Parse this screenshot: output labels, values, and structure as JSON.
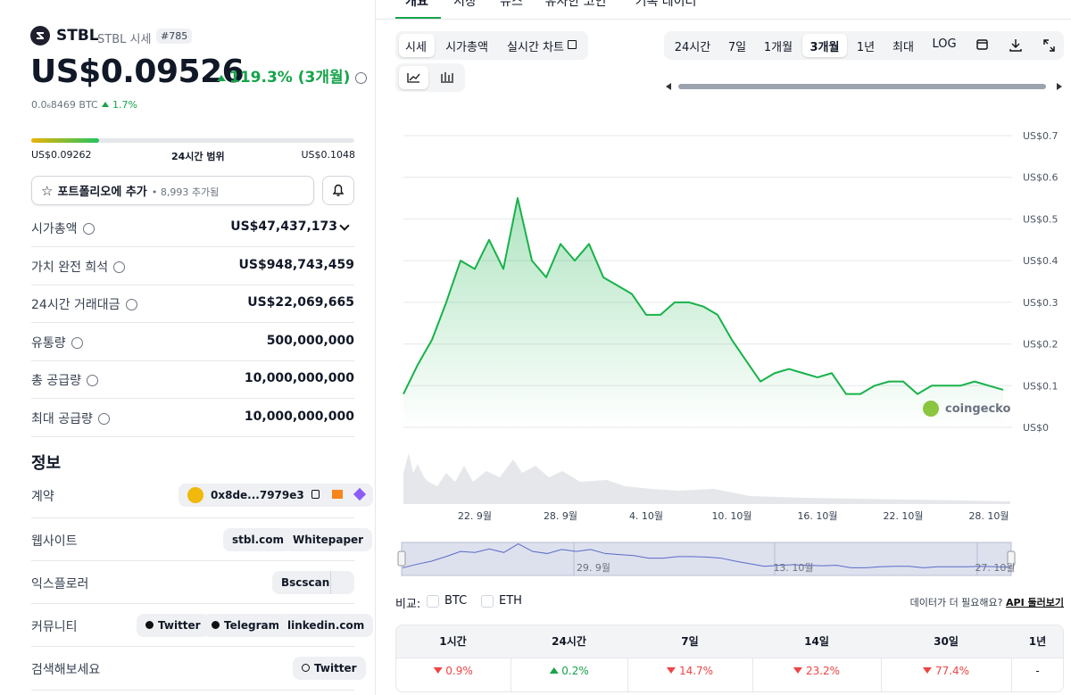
{
  "header": {
    "symbol": "STBL",
    "name": "STBL 시세",
    "rank": "#785",
    "price": "US$0.09526",
    "change": "119.3% (3개월)",
    "btc_price": "0.0₆8469 BTC",
    "btc_change": "1.7%"
  },
  "range": {
    "low": "US$0.09262",
    "label": "24시간 범위",
    "high": "US$0.1048"
  },
  "portfolio": {
    "label": "포트폴리오에 추가",
    "count": "• 8,993 추가됨"
  },
  "stats": [
    {
      "label": "시가총액",
      "value": "US$47,437,173"
    },
    {
      "label": "가치 완전 희석",
      "value": "US$948,743,459"
    },
    {
      "label": "24시간 거래대금",
      "value": "US$22,069,665"
    },
    {
      "label": "유통량",
      "value": "500,000,000"
    },
    {
      "label": "총 공급량",
      "value": "10,000,000,000"
    },
    {
      "label": "최대 공급량",
      "value": "10,000,000,000"
    }
  ],
  "info": {
    "title": "정보",
    "rows": [
      {
        "label": "계약",
        "items": [
          "0x8de...7979e3"
        ]
      },
      {
        "label": "웹사이트",
        "items": [
          "stbl.com",
          "Whitepaper"
        ]
      },
      {
        "label": "익스플로러",
        "items": [
          "Bscscan"
        ]
      },
      {
        "label": "커뮤니티",
        "items": [
          "Twitter",
          "Telegram",
          "linkedin.com"
        ]
      },
      {
        "label": "검색해보세요",
        "items": [
          "Twitter"
        ]
      }
    ]
  },
  "tabs": [
    "개요",
    "시장",
    "뉴스",
    "유사한 코인",
    "기록 데이터"
  ],
  "chart_tabs": [
    "시세",
    "시가총액",
    "실시간 차트"
  ],
  "ranges": [
    "24시간",
    "7일",
    "1개월",
    "3개월",
    "1년",
    "최대",
    "LOG"
  ],
  "chart_data": {
    "type": "line",
    "categories": [
      null,
      null,
      null,
      null,
      null,
      "22. 9월",
      null,
      null,
      null,
      null,
      null,
      "28. 9월",
      null,
      null,
      null,
      null,
      null,
      "4. 10월",
      null,
      null,
      null,
      null,
      null,
      "10. 10월",
      null,
      null,
      null,
      null,
      null,
      "16. 10월",
      null,
      null,
      null,
      null,
      null,
      "22. 10월",
      null,
      null,
      null,
      null,
      null,
      "28. 10월",
      null
    ],
    "series": [
      {
        "name": "시세",
        "color": "#18b24a",
        "values": [
          0.08,
          0.15,
          0.21,
          0.3,
          0.4,
          0.38,
          0.45,
          0.38,
          0.55,
          0.4,
          0.36,
          0.44,
          0.4,
          0.44,
          0.36,
          0.34,
          0.32,
          0.27,
          0.27,
          0.3,
          0.3,
          0.29,
          0.27,
          0.21,
          0.16,
          0.11,
          0.13,
          0.14,
          0.13,
          0.12,
          0.13,
          0.08,
          0.08,
          0.1,
          0.11,
          0.11,
          0.08,
          0.1,
          0.1,
          0.1,
          0.11,
          0.1,
          0.09
        ]
      }
    ],
    "ylim": [
      0,
      0.7
    ],
    "yticks": [
      {
        "value": 0,
        "label": "US$0"
      },
      {
        "value": 0.1,
        "label": "US$0.1"
      },
      {
        "value": 0.2,
        "label": "US$0.2"
      },
      {
        "value": 0.3,
        "label": "US$0.3"
      },
      {
        "value": 0.4,
        "label": "US$0.4"
      },
      {
        "value": 0.5,
        "label": "US$0.5"
      },
      {
        "value": 0.6,
        "label": "US$0.6"
      },
      {
        "value": 0.7,
        "label": "US$0.7"
      }
    ],
    "grid": true,
    "watermark": "coingecko"
  },
  "navigator_labels": [
    "29. 9월",
    "13. 10월",
    "27. 10월"
  ],
  "compare": {
    "label": "비교:",
    "options": [
      "BTC",
      "ETH"
    ],
    "prompt": "데이터가 더 필요해요?",
    "link": "API 둘러보기"
  },
  "performance": {
    "headers": [
      "1시간",
      "24시간",
      "7일",
      "14일",
      "30일",
      "1년"
    ],
    "values": [
      "0.9%",
      "0.2%",
      "14.7%",
      "23.2%",
      "77.4%",
      "-"
    ],
    "trend": [
      "down",
      "up",
      "down",
      "down",
      "down",
      null
    ]
  }
}
